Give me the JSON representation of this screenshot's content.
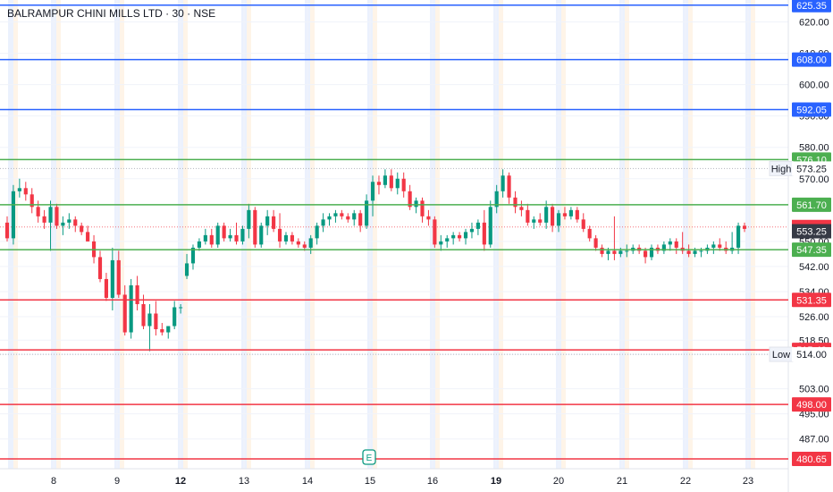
{
  "chart_data": {
    "type": "candlestick",
    "title": "BALRAMPUR CHINI MILLS LTD · 30 · NSE",
    "ylim": [
      477.5,
      627.0
    ],
    "y_ticks": [
      620.0,
      610.0,
      600.0,
      590.0,
      580.0,
      570.0,
      550.0,
      542.0,
      534.0,
      526.0,
      518.5,
      514.0,
      503.0,
      495.0,
      487.0
    ],
    "y_tick_labels": [
      "620.00",
      "610.00",
      "600.00",
      "590.00",
      "580.00",
      "570.00",
      "550.00",
      "542.00",
      "534.00",
      "526.00",
      "518.50",
      "514.00",
      "503.00",
      "495.00",
      "487.00"
    ],
    "x_ticks": [
      {
        "label": "8",
        "bold": false
      },
      {
        "label": "9",
        "bold": false
      },
      {
        "label": "12",
        "bold": true
      },
      {
        "label": "13",
        "bold": false
      },
      {
        "label": "14",
        "bold": false
      },
      {
        "label": "15",
        "bold": false
      },
      {
        "label": "16",
        "bold": false
      },
      {
        "label": "19",
        "bold": true
      },
      {
        "label": "20",
        "bold": false
      },
      {
        "label": "21",
        "bold": false
      },
      {
        "label": "22",
        "bold": false
      },
      {
        "label": "23",
        "bold": false
      }
    ],
    "levels": [
      {
        "value": 625.35,
        "label": "625.35",
        "color": "#2962ff"
      },
      {
        "value": 608.0,
        "label": "608.00",
        "color": "#2962ff"
      },
      {
        "value": 592.05,
        "label": "592.05",
        "color": "#2962ff"
      },
      {
        "value": 576.1,
        "label": "576.10",
        "color": "#4caf50"
      },
      {
        "value": 561.7,
        "label": "561.70",
        "color": "#4caf50"
      },
      {
        "value": 547.35,
        "label": "547.35",
        "color": "#4caf50"
      },
      {
        "value": 531.35,
        "label": "531.35",
        "color": "#f23645"
      },
      {
        "value": 515.4,
        "label": "515.40",
        "color": "#f23645"
      },
      {
        "value": 498.0,
        "label": "498.00",
        "color": "#f23645"
      },
      {
        "value": 480.65,
        "label": "480.65",
        "color": "#f23645"
      }
    ],
    "markers": [
      {
        "name": "High",
        "value": 573.25,
        "label": "573.25"
      },
      {
        "name": "Low",
        "value": 514.0,
        "label": "514.00"
      }
    ],
    "current_close": {
      "value": 554.6,
      "label": "554.60",
      "color": "#f23645"
    },
    "prev_close": {
      "value": 553.25,
      "label": "553.25",
      "color": "#363a45"
    },
    "earnings_marker": "E",
    "candles": [
      [
        556,
        558,
        550,
        551
      ],
      [
        551,
        568,
        549,
        566
      ],
      [
        566,
        570,
        564,
        567
      ],
      [
        567,
        569,
        563,
        565
      ],
      [
        565,
        567,
        559,
        561
      ],
      [
        561,
        563,
        556,
        558
      ],
      [
        558,
        560,
        554,
        556
      ],
      [
        556,
        563,
        547,
        561
      ],
      [
        561,
        562,
        554,
        555
      ],
      [
        555,
        558,
        552,
        556
      ],
      [
        556,
        559,
        554,
        557
      ],
      [
        557,
        558,
        553,
        555
      ],
      [
        555,
        556,
        552,
        553
      ],
      [
        553,
        555,
        550,
        550
      ],
      [
        550,
        552,
        543,
        545
      ],
      [
        545,
        547,
        537,
        538
      ],
      [
        538,
        540,
        531,
        532
      ],
      [
        532,
        548,
        528,
        544
      ],
      [
        544,
        547,
        532,
        533
      ],
      [
        533,
        536,
        520,
        521
      ],
      [
        521,
        538,
        519,
        536
      ],
      [
        536,
        539,
        528,
        530
      ],
      [
        530,
        533,
        522,
        523
      ],
      [
        523,
        530,
        515,
        527
      ],
      [
        527,
        531,
        520,
        522
      ],
      [
        522,
        524,
        520,
        521
      ],
      [
        521,
        523,
        519,
        523
      ],
      [
        523,
        531,
        522,
        529
      ],
      [
        529,
        530,
        527,
        529
      ],
      [
        539,
        546,
        538,
        543
      ],
      [
        543,
        549,
        541,
        548
      ],
      [
        548,
        551,
        547,
        550
      ],
      [
        550,
        554,
        549,
        552
      ],
      [
        552,
        554,
        548,
        549
      ],
      [
        549,
        556,
        548,
        555
      ],
      [
        555,
        556,
        550,
        551
      ],
      [
        551,
        554,
        550,
        552
      ],
      [
        552,
        556,
        549,
        550
      ],
      [
        550,
        555,
        549,
        554
      ],
      [
        554,
        562,
        551,
        560
      ],
      [
        560,
        561,
        548,
        549
      ],
      [
        549,
        556,
        548,
        555
      ],
      [
        555,
        560,
        552,
        558
      ],
      [
        558,
        560,
        553,
        554
      ],
      [
        554,
        559,
        548,
        550
      ],
      [
        550,
        553,
        549,
        552
      ],
      [
        552,
        553,
        549,
        550
      ],
      [
        550,
        551,
        548,
        549
      ],
      [
        549,
        550,
        547,
        548
      ],
      [
        548,
        552,
        546,
        551
      ],
      [
        551,
        556,
        549,
        555
      ],
      [
        555,
        559,
        553,
        557
      ],
      [
        557,
        559,
        555,
        558
      ],
      [
        558,
        560,
        556,
        559
      ],
      [
        559,
        560,
        557,
        558
      ],
      [
        558,
        559,
        556,
        557
      ],
      [
        557,
        560,
        555,
        559
      ],
      [
        559,
        560,
        553,
        555
      ],
      [
        555,
        565,
        554,
        563
      ],
      [
        563,
        571,
        558,
        569
      ],
      [
        569,
        571,
        565,
        568
      ],
      [
        568,
        573,
        567,
        571
      ],
      [
        571,
        573,
        566,
        567
      ],
      [
        567,
        572,
        565,
        570
      ],
      [
        570,
        572,
        564,
        566
      ],
      [
        566,
        568,
        560,
        561
      ],
      [
        561,
        564,
        559,
        563
      ],
      [
        563,
        564,
        556,
        558
      ],
      [
        558,
        560,
        555,
        557
      ],
      [
        557,
        558,
        548,
        549
      ],
      [
        549,
        552,
        547,
        550
      ],
      [
        550,
        552,
        548,
        551
      ],
      [
        551,
        553,
        549,
        552
      ],
      [
        552,
        553,
        550,
        551
      ],
      [
        551,
        554,
        549,
        553
      ],
      [
        553,
        556,
        551,
        554
      ],
      [
        554,
        557,
        552,
        556
      ],
      [
        556,
        560,
        547,
        549
      ],
      [
        549,
        563,
        548,
        561
      ],
      [
        561,
        568,
        559,
        566
      ],
      [
        566,
        573,
        564,
        571
      ],
      [
        571,
        572,
        562,
        564
      ],
      [
        564,
        566,
        559,
        561
      ],
      [
        561,
        563,
        558,
        560
      ],
      [
        560,
        562,
        555,
        556
      ],
      [
        556,
        558,
        554,
        557
      ],
      [
        557,
        559,
        555,
        556
      ],
      [
        556,
        563,
        554,
        561
      ],
      [
        561,
        562,
        553,
        555
      ],
      [
        555,
        560,
        553,
        559
      ],
      [
        559,
        561,
        557,
        558
      ],
      [
        558,
        561,
        557,
        560
      ],
      [
        560,
        561,
        556,
        557
      ],
      [
        557,
        559,
        553,
        554
      ],
      [
        554,
        555,
        550,
        551
      ],
      [
        551,
        552,
        547,
        548
      ],
      [
        548,
        549,
        545,
        546
      ],
      [
        546,
        548,
        544,
        547
      ],
      [
        547,
        558,
        544,
        546
      ],
      [
        546,
        548,
        545,
        547
      ],
      [
        547,
        549,
        545,
        547
      ],
      [
        547,
        549,
        546,
        548
      ],
      [
        548,
        549,
        546,
        547
      ],
      [
        547,
        548,
        543,
        545
      ],
      [
        545,
        549,
        544,
        548
      ],
      [
        548,
        549,
        546,
        547
      ],
      [
        547,
        550,
        546,
        549
      ],
      [
        549,
        551,
        547,
        550
      ],
      [
        550,
        551,
        546,
        548
      ],
      [
        548,
        553,
        546,
        547
      ],
      [
        547,
        549,
        545,
        546
      ],
      [
        546,
        548,
        545,
        547
      ],
      [
        547,
        548,
        545,
        547
      ],
      [
        547,
        549,
        546,
        548
      ],
      [
        548,
        550,
        546,
        549
      ],
      [
        549,
        551,
        547,
        548
      ],
      [
        548,
        550,
        546,
        547
      ],
      [
        547,
        553,
        546,
        548
      ],
      [
        548,
        556,
        546,
        555
      ],
      [
        555,
        556,
        553,
        554
      ]
    ]
  }
}
